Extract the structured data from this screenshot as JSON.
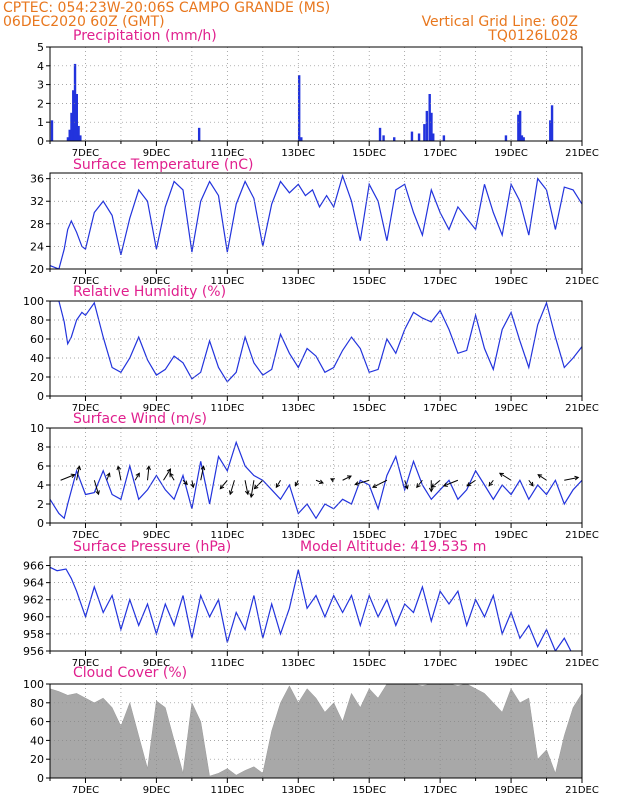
{
  "header": {
    "line1": "CPTEC:   054:23W-20:06S  CAMPO GRANDE (MS)",
    "line2": "06DEC2020 60Z (GMT)",
    "right1": "Vertical Grid Line: 60Z",
    "right2": "TQ0126L028"
  },
  "panel_titles": {
    "precip": "Precipitation (mm/h)",
    "temp": "Surface Temperature (nC)",
    "rh": "Relative Humidity (%)",
    "wind": "Surface Wind (m/s)",
    "pres": "Surface Pressure (hPa)",
    "altitude": "Model Altitude: 419.535 m",
    "cloud": "Cloud Cover (%)"
  },
  "colors": {
    "header": "#e8771e",
    "title": "#e0208e",
    "line": "#2233dd",
    "bar": "#2233dd",
    "cloud": "#a8a8a8",
    "grid": "#888888"
  },
  "chart_data": [
    {
      "type": "bar",
      "name": "precip",
      "ylim": [
        0,
        5
      ],
      "yticks": [
        0,
        1,
        2,
        3,
        4,
        5
      ],
      "x": [
        6.05,
        6.5,
        6.55,
        6.6,
        6.65,
        6.7,
        6.75,
        6.8,
        6.85,
        10.2,
        13.02,
        13.08,
        15.3,
        15.4,
        15.7,
        16.2,
        16.4,
        16.55,
        16.62,
        16.7,
        16.75,
        16.8,
        17.1,
        18.85,
        19.2,
        19.25,
        19.3,
        19.35,
        20.1,
        20.15
      ],
      "values": [
        1.1,
        0.2,
        0.6,
        1.5,
        2.7,
        4.1,
        2.5,
        0.8,
        0.3,
        0.7,
        3.5,
        0.2,
        0.7,
        0.3,
        0.2,
        0.5,
        0.4,
        0.9,
        1.6,
        2.5,
        1.5,
        0.4,
        0.3,
        0.3,
        1.4,
        1.6,
        0.3,
        0.2,
        1.1,
        1.9
      ]
    },
    {
      "type": "line",
      "name": "temp",
      "ylim": [
        20,
        37
      ],
      "yticks": [
        20,
        24,
        28,
        32,
        36
      ],
      "x": [
        6.0,
        6.25,
        6.4,
        6.5,
        6.6,
        6.75,
        6.9,
        7.0,
        7.25,
        7.5,
        7.75,
        8.0,
        8.25,
        8.5,
        8.75,
        9.0,
        9.25,
        9.5,
        9.75,
        10.0,
        10.25,
        10.5,
        10.75,
        11.0,
        11.25,
        11.5,
        11.75,
        12.0,
        12.25,
        12.5,
        12.75,
        13.0,
        13.2,
        13.4,
        13.6,
        13.8,
        14.0,
        14.25,
        14.5,
        14.75,
        15.0,
        15.25,
        15.5,
        15.75,
        16.0,
        16.25,
        16.5,
        16.75,
        17.0,
        17.25,
        17.5,
        17.75,
        18.0,
        18.25,
        18.5,
        18.75,
        19.0,
        19.25,
        19.5,
        19.75,
        20.0,
        20.25,
        20.5,
        20.75,
        21.0
      ],
      "values": [
        20.6,
        20.0,
        23.5,
        27.0,
        28.5,
        26.5,
        24.0,
        23.5,
        30.0,
        32.0,
        29.5,
        22.5,
        29.0,
        34.0,
        32.0,
        23.5,
        31.0,
        35.5,
        34.0,
        23.0,
        32.0,
        35.5,
        33.0,
        23.0,
        31.5,
        35.5,
        32.5,
        24.0,
        31.5,
        35.5,
        33.5,
        35.0,
        33.0,
        34.0,
        31.0,
        33.0,
        31.0,
        36.5,
        32.0,
        25.0,
        35.0,
        32.0,
        25.0,
        34.0,
        35.0,
        30.0,
        26.0,
        34.0,
        30.0,
        27.0,
        31.0,
        29.0,
        27.0,
        35.0,
        30.0,
        26.0,
        35.0,
        32.0,
        26.0,
        36.0,
        34.0,
        27.0,
        34.5,
        34.0,
        31.5
      ]
    },
    {
      "type": "line",
      "name": "rh",
      "ylim": [
        0,
        100
      ],
      "yticks": [
        0,
        20,
        40,
        60,
        80,
        100
      ],
      "x": [
        6.0,
        6.25,
        6.4,
        6.5,
        6.6,
        6.75,
        6.9,
        7.0,
        7.25,
        7.5,
        7.75,
        8.0,
        8.25,
        8.5,
        8.75,
        9.0,
        9.25,
        9.5,
        9.75,
        10.0,
        10.25,
        10.5,
        10.75,
        11.0,
        11.25,
        11.5,
        11.75,
        12.0,
        12.25,
        12.5,
        12.75,
        13.0,
        13.25,
        13.5,
        13.75,
        14.0,
        14.25,
        14.5,
        14.75,
        15.0,
        15.25,
        15.5,
        15.75,
        16.0,
        16.25,
        16.5,
        16.75,
        17.0,
        17.25,
        17.5,
        17.75,
        18.0,
        18.25,
        18.5,
        18.75,
        19.0,
        19.25,
        19.5,
        19.75,
        20.0,
        20.25,
        20.5,
        20.75,
        21.0
      ],
      "values": [
        100,
        100,
        78,
        55,
        62,
        80,
        88,
        85,
        98,
        62,
        30,
        25,
        40,
        62,
        38,
        22,
        28,
        42,
        35,
        18,
        25,
        58,
        30,
        15,
        25,
        62,
        35,
        22,
        28,
        65,
        45,
        30,
        50,
        42,
        25,
        30,
        48,
        62,
        50,
        25,
        28,
        60,
        45,
        70,
        88,
        82,
        78,
        90,
        70,
        45,
        48,
        85,
        50,
        28,
        70,
        88,
        58,
        30,
        75,
        98,
        62,
        30,
        40,
        52
      ]
    },
    {
      "type": "line",
      "name": "wind_speed",
      "ylim": [
        0,
        10
      ],
      "yticks": [
        0,
        2,
        4,
        6,
        8,
        10
      ],
      "x": [
        6.0,
        6.25,
        6.4,
        6.5,
        6.75,
        7.0,
        7.25,
        7.5,
        7.75,
        8.0,
        8.25,
        8.5,
        8.75,
        9.0,
        9.25,
        9.5,
        9.75,
        10.0,
        10.25,
        10.5,
        10.75,
        11.0,
        11.25,
        11.5,
        11.75,
        12.0,
        12.25,
        12.5,
        12.75,
        13.0,
        13.25,
        13.5,
        13.75,
        14.0,
        14.25,
        14.5,
        14.75,
        15.0,
        15.25,
        15.5,
        15.75,
        16.0,
        16.25,
        16.5,
        16.75,
        17.0,
        17.25,
        17.5,
        17.75,
        18.0,
        18.25,
        18.5,
        18.75,
        19.0,
        19.25,
        19.5,
        19.75,
        20.0,
        20.25,
        20.5,
        20.75,
        21.0
      ],
      "values": [
        2.5,
        1.0,
        0.5,
        2.0,
        5.5,
        3.0,
        3.2,
        5.5,
        3.0,
        2.5,
        6.0,
        2.5,
        3.5,
        5.0,
        3.5,
        2.5,
        5.0,
        1.5,
        6.5,
        2.0,
        7.0,
        5.5,
        8.5,
        6.0,
        5.0,
        4.5,
        3.5,
        2.5,
        4.0,
        1.0,
        2.0,
        0.5,
        2.0,
        1.5,
        2.5,
        2.0,
        4.5,
        4.0,
        1.5,
        5.0,
        7.0,
        3.5,
        6.5,
        4.0,
        2.5,
        3.5,
        4.5,
        2.5,
        3.5,
        5.5,
        4.0,
        2.5,
        4.0,
        3.0,
        4.5,
        2.5,
        4.0,
        3.0,
        4.5,
        2.0,
        3.5,
        4.5
      ]
    },
    {
      "type": "scatter",
      "name": "wind_vectors",
      "x": [
        6.3,
        6.75,
        7.25,
        7.6,
        8.0,
        8.4,
        8.75,
        9.2,
        9.5,
        9.75,
        10.0,
        10.25,
        11.0,
        11.2,
        11.5,
        11.75,
        12.0,
        12.5,
        13.0,
        13.5,
        14.0,
        14.25,
        15.0,
        15.5,
        16.0,
        16.5,
        16.75,
        17.0,
        17.5,
        18.0,
        18.5,
        19.0,
        19.5,
        20.0,
        20.5
      ],
      "u": [
        1.0,
        0.2,
        0.3,
        0.2,
        -0.2,
        0.3,
        0.1,
        0.5,
        -0.3,
        0.3,
        0.1,
        0.2,
        -0.5,
        -0.3,
        0.2,
        -0.2,
        -0.6,
        -0.3,
        -0.2,
        0.5,
        -0.2,
        0.6,
        -1.0,
        -1.0,
        0.2,
        -0.4,
        0.0,
        -0.6,
        -1.0,
        -0.6,
        -0.3,
        -0.8,
        0.3,
        -0.6,
        1.0
      ],
      "v": [
        0.4,
        1.0,
        -1.0,
        0.5,
        1.0,
        0.5,
        1.0,
        0.8,
        0.5,
        -0.3,
        -0.5,
        1.0,
        -0.6,
        -1.0,
        -1.0,
        -1.2,
        -0.6,
        -0.5,
        -0.4,
        -0.2,
        0.1,
        0.3,
        -0.3,
        -0.5,
        -0.6,
        -0.5,
        -0.8,
        -0.5,
        -0.4,
        -0.4,
        -0.4,
        0.5,
        -0.4,
        0.4,
        0.2
      ]
    },
    {
      "type": "line",
      "name": "pressure",
      "ylim": [
        956,
        967
      ],
      "yticks": [
        956,
        958,
        960,
        962,
        964,
        966
      ],
      "x": [
        6.0,
        6.2,
        6.45,
        6.6,
        6.75,
        7.0,
        7.25,
        7.5,
        7.75,
        8.0,
        8.25,
        8.5,
        8.75,
        9.0,
        9.25,
        9.5,
        9.75,
        10.0,
        10.25,
        10.5,
        10.75,
        11.0,
        11.25,
        11.5,
        11.75,
        12.0,
        12.25,
        12.5,
        12.75,
        13.0,
        13.25,
        13.5,
        13.75,
        14.0,
        14.25,
        14.5,
        14.75,
        15.0,
        15.25,
        15.5,
        15.75,
        16.0,
        16.25,
        16.5,
        16.75,
        17.0,
        17.25,
        17.5,
        17.75,
        18.0,
        18.25,
        18.5,
        18.75,
        19.0,
        19.25,
        19.5,
        19.75,
        20.0,
        20.25,
        20.5,
        20.75,
        21.0
      ],
      "values": [
        965.8,
        965.4,
        965.6,
        964.5,
        963.0,
        960.0,
        963.5,
        960.5,
        962.5,
        958.5,
        962.0,
        959.0,
        961.5,
        958.0,
        961.5,
        959.0,
        962.5,
        957.5,
        962.5,
        960.0,
        962.0,
        957.0,
        960.5,
        958.5,
        962.5,
        957.5,
        961.5,
        958.0,
        961.0,
        965.5,
        961.0,
        962.5,
        960.0,
        962.5,
        960.5,
        962.5,
        959.0,
        962.5,
        960.0,
        962.0,
        959.0,
        961.5,
        960.5,
        963.5,
        959.5,
        963.0,
        961.5,
        963.0,
        959.0,
        962.0,
        960.0,
        962.5,
        958.0,
        960.5,
        957.5,
        959.0,
        956.5,
        958.5,
        956.0,
        957.5,
        955.5,
        955.0
      ]
    },
    {
      "type": "area",
      "name": "cloud",
      "ylim": [
        0,
        100
      ],
      "yticks": [
        0,
        20,
        40,
        60,
        80,
        100
      ],
      "x": [
        6.0,
        6.25,
        6.5,
        6.75,
        7.0,
        7.25,
        7.5,
        7.75,
        8.0,
        8.25,
        8.5,
        8.75,
        9.0,
        9.25,
        9.5,
        9.75,
        10.0,
        10.25,
        10.5,
        10.75,
        11.0,
        11.25,
        11.5,
        11.75,
        12.0,
        12.25,
        12.5,
        12.75,
        13.0,
        13.25,
        13.5,
        13.75,
        14.0,
        14.25,
        14.5,
        14.75,
        15.0,
        15.25,
        15.5,
        15.75,
        16.0,
        16.25,
        16.5,
        16.75,
        17.0,
        17.25,
        17.5,
        17.75,
        18.0,
        18.25,
        18.5,
        18.75,
        19.0,
        19.25,
        19.5,
        19.75,
        20.0,
        20.25,
        20.5,
        20.75,
        21.0
      ],
      "values": [
        95,
        92,
        88,
        90,
        85,
        80,
        85,
        75,
        55,
        80,
        45,
        10,
        82,
        75,
        40,
        5,
        80,
        60,
        2,
        5,
        10,
        3,
        8,
        12,
        5,
        50,
        80,
        98,
        80,
        95,
        85,
        70,
        80,
        60,
        90,
        75,
        95,
        85,
        100,
        100,
        100,
        100,
        98,
        100,
        100,
        100,
        98,
        100,
        95,
        90,
        80,
        70,
        95,
        80,
        85,
        20,
        30,
        5,
        45,
        75,
        90
      ]
    }
  ],
  "x_axis": {
    "ticks": [
      "7DEC",
      "9DEC",
      "11DEC",
      "13DEC",
      "15DEC",
      "17DEC",
      "19DEC",
      "21DEC"
    ]
  }
}
